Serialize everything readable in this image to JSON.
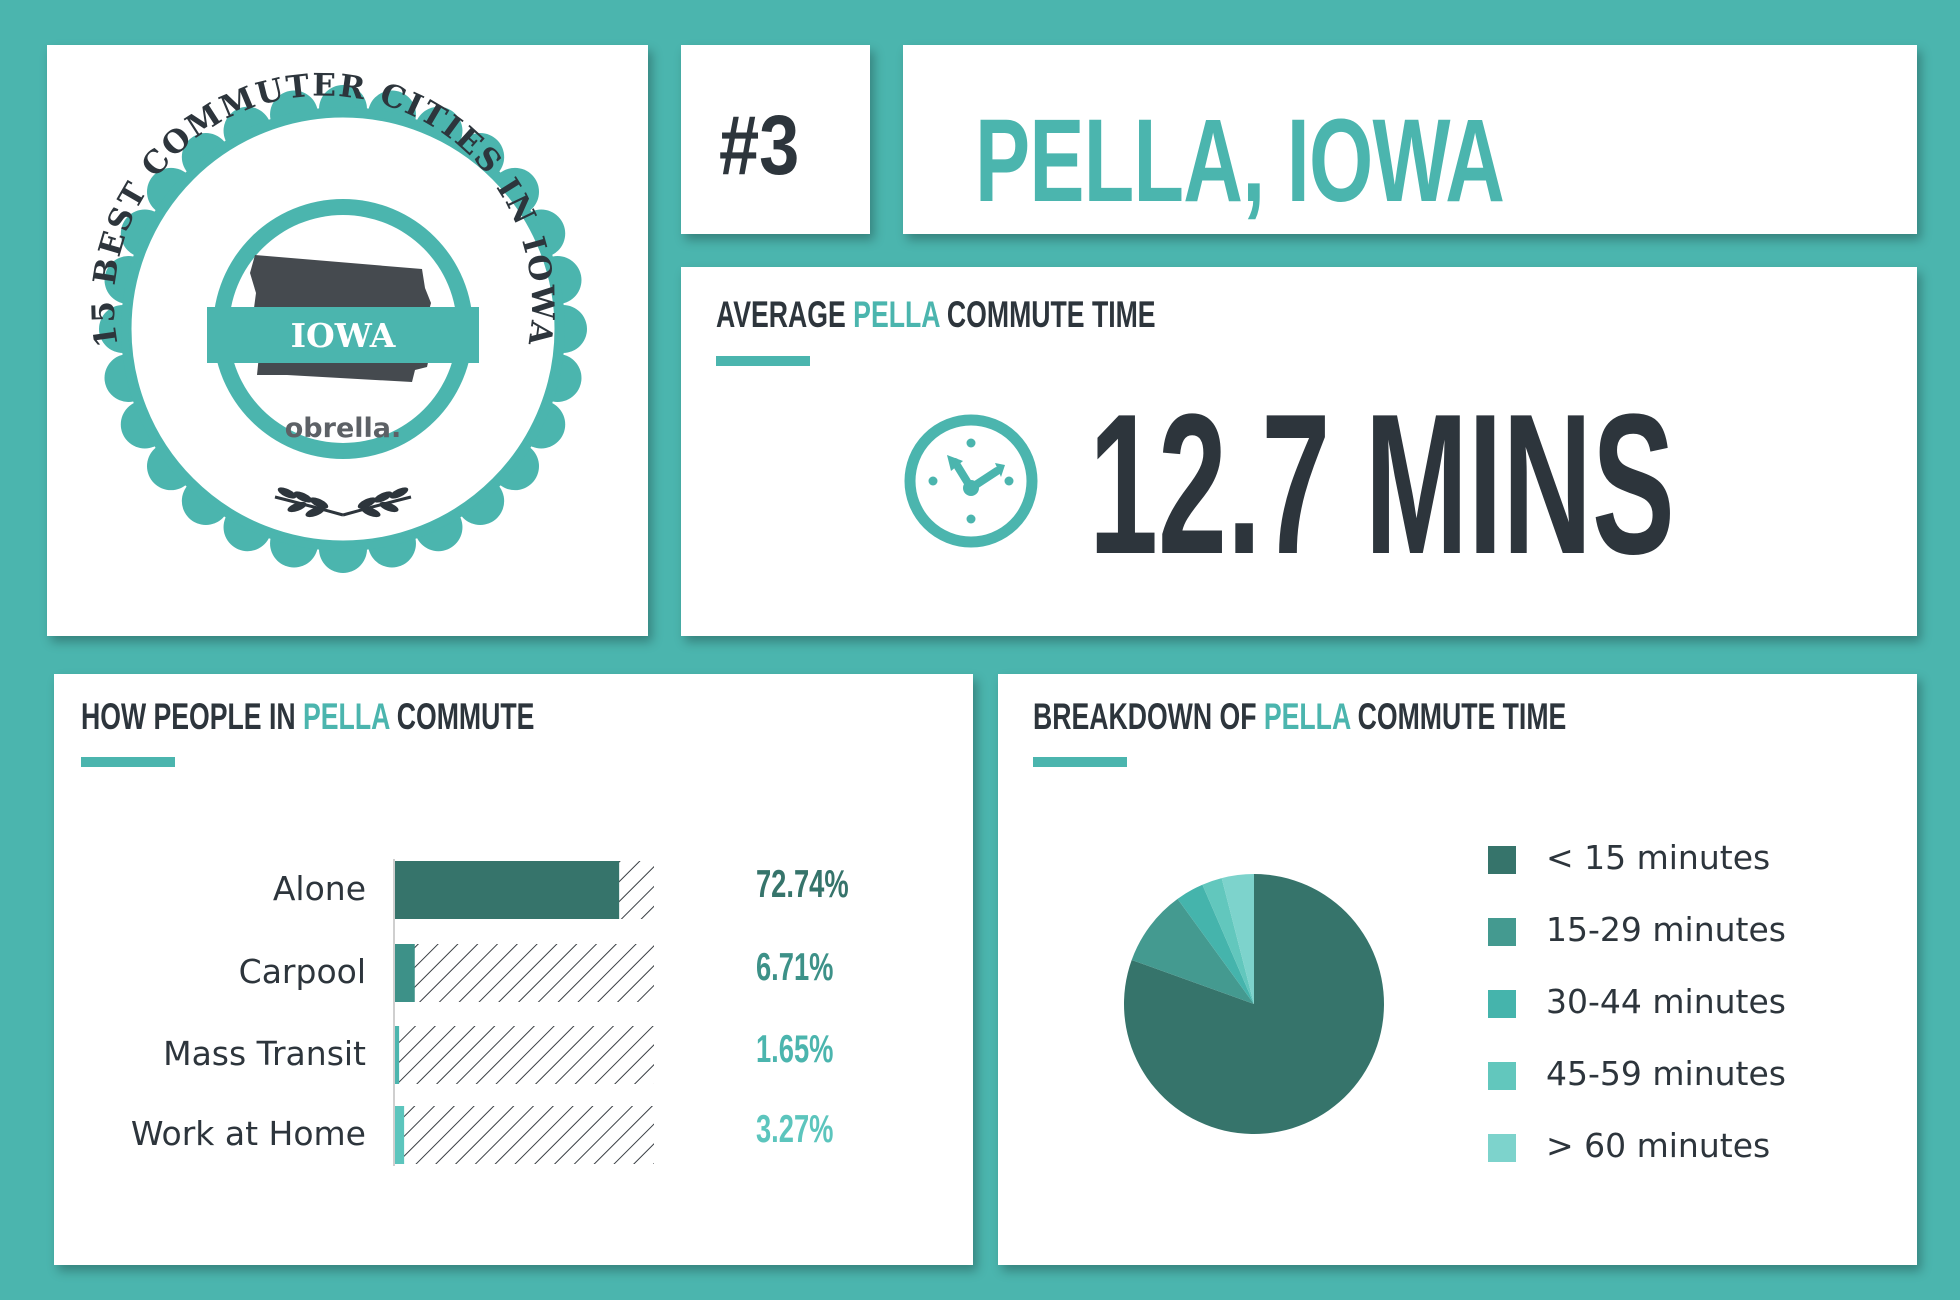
{
  "badge": {
    "arc_text": "15 BEST COMMUTER CITIES IN IOWA",
    "state_label": "IOWA",
    "brand": "obrella."
  },
  "rank": "#3",
  "city": "PELLA, IOWA",
  "average": {
    "title_prefix": "AVERAGE ",
    "title_city": "PELLA",
    "title_suffix": " COMMUTE TIME",
    "value": "12.7 MINS",
    "icon": "clock-icon"
  },
  "commute": {
    "title_prefix": "HOW PEOPLE IN ",
    "title_city": "PELLA",
    "title_suffix": " COMMUTE",
    "rows": [
      {
        "label": "Alone",
        "value_text": "72.74%",
        "value": 72.74,
        "color": "#36746b"
      },
      {
        "label": "Carpool",
        "value_text": "6.71%",
        "value": 6.71,
        "color": "#3d9188"
      },
      {
        "label": "Mass Transit",
        "value_text": "1.65%",
        "value": 1.65,
        "color": "#4bb5ae"
      },
      {
        "label": "Work at Home",
        "value_text": "3.27%",
        "value": 3.27,
        "color": "#5cc5bd"
      }
    ]
  },
  "breakdown": {
    "title_prefix": "BREAKDOWN OF ",
    "title_city": "PELLA",
    "title_suffix": " COMMUTE TIME",
    "legend": [
      {
        "label": "< 15 minutes",
        "color": "#36746b"
      },
      {
        "label": "15-29 minutes",
        "color": "#449a90"
      },
      {
        "label": "30-44 minutes",
        "color": "#45b4ac"
      },
      {
        "label": "45-59 minutes",
        "color": "#62c7bd"
      },
      {
        "label": "> 60 minutes",
        "color": "#7dd3cc"
      }
    ]
  },
  "chart_data": [
    {
      "type": "bar",
      "categories": [
        "Alone",
        "Carpool",
        "Mass Transit",
        "Work at Home"
      ],
      "values": [
        72.74,
        6.71,
        1.65,
        3.27
      ],
      "title": "HOW PEOPLE IN PELLA COMMUTE",
      "ylim": [
        0,
        100
      ]
    },
    {
      "type": "pie",
      "categories": [
        "< 15 minutes",
        "15-29 minutes",
        "30-44 minutes",
        "45-59 minutes",
        "> 60 minutes"
      ],
      "values": [
        80.5,
        9.5,
        3.5,
        2.5,
        4.0
      ],
      "title": "BREAKDOWN OF PELLA COMMUTE TIME"
    }
  ]
}
